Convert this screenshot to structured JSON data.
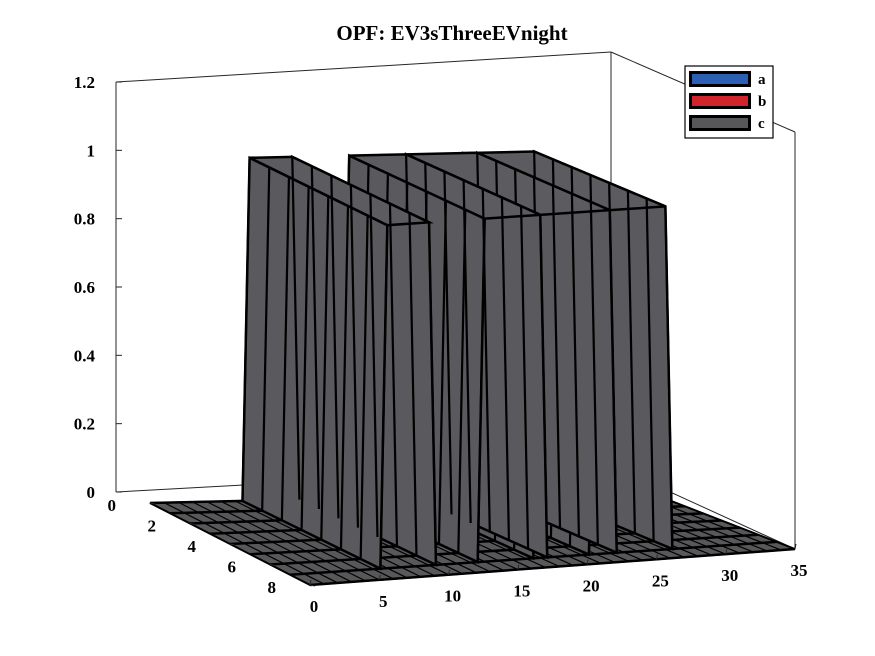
{
  "chart_data": {
    "type": "surface3d",
    "title": "OPF: EV3sThreeEVnight",
    "zlim": [
      0,
      1.2
    ],
    "z_ticks": [
      "0",
      "0.2",
      "0.4",
      "0.6",
      "0.8",
      "1",
      "1.2"
    ],
    "x_ticks": [
      "0",
      "5",
      "10",
      "15",
      "20",
      "25",
      "30",
      "35"
    ],
    "y_ticks": [
      "0",
      "2",
      "4",
      "6",
      "8"
    ],
    "xlim": [
      0,
      35
    ],
    "ylim": [
      0,
      8
    ],
    "grid": false,
    "legend_position": "top-right",
    "series": [
      {
        "name": "a",
        "color": "#2b5fb3",
        "level": 0
      },
      {
        "name": "b",
        "color": "#d0252d",
        "level": 0
      },
      {
        "name": "c",
        "color": "#58585b",
        "level": 1,
        "pulses": [
          {
            "rows": [
              1,
              8
            ],
            "x_start": 7,
            "x_end": 10
          },
          {
            "rows": [
              1,
              8
            ],
            "x_start": 14,
            "x_end": 18
          },
          {
            "rows": [
              1,
              8
            ],
            "x_start": 18,
            "x_end": 23
          },
          {
            "rows": [
              1,
              8
            ],
            "x_start": 22,
            "x_end": 27
          }
        ]
      }
    ]
  }
}
